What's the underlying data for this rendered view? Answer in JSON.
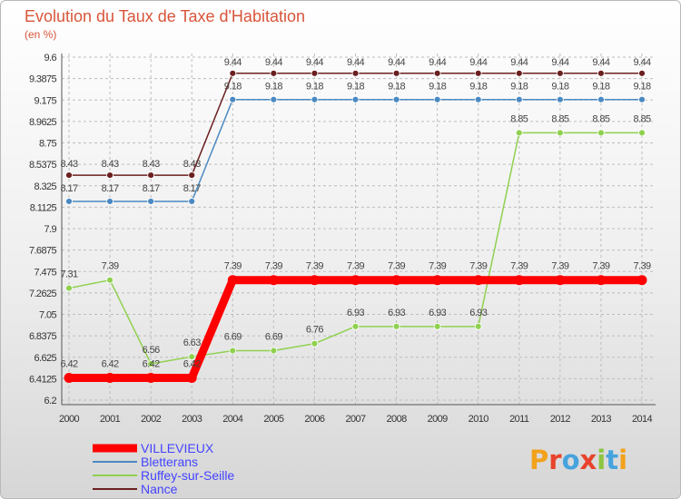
{
  "chart_data": {
    "type": "line",
    "title": "Evolution du Taux de Taxe d'Habitation",
    "ylabel": "(en %)",
    "xlabel": "",
    "categories": [
      "2000",
      "2001",
      "2002",
      "2003",
      "2004",
      "2005",
      "2006",
      "2007",
      "2008",
      "2009",
      "2010",
      "2011",
      "2012",
      "2013",
      "2014"
    ],
    "ylim": [
      6.2,
      9.6
    ],
    "yticks": [
      "6.2",
      "6.4125",
      "6.625",
      "6.8375",
      "7.05",
      "7.2625",
      "7.475",
      "7.6875",
      "7.9",
      "8.1125",
      "8.325",
      "8.5375",
      "8.75",
      "8.9625",
      "9.175",
      "9.3875",
      "9.6"
    ],
    "grid": true,
    "legend": "bottom-left",
    "series": [
      {
        "name": "VILLEVIEUX",
        "color": "#ff0000",
        "values": [
          6.42,
          6.42,
          6.42,
          6.42,
          7.39,
          7.39,
          7.39,
          7.39,
          7.39,
          7.39,
          7.39,
          7.39,
          7.39,
          7.39,
          7.39
        ]
      },
      {
        "name": "Bletterans",
        "color": "#4a89c2",
        "values": [
          8.17,
          8.17,
          8.17,
          8.17,
          9.18,
          9.18,
          9.18,
          9.18,
          9.18,
          9.18,
          9.18,
          9.18,
          9.18,
          9.18,
          9.18
        ]
      },
      {
        "name": "Ruffey-sur-Seille",
        "color": "#8fd14f",
        "values": [
          7.31,
          7.39,
          6.56,
          6.63,
          6.69,
          6.69,
          6.76,
          6.93,
          6.93,
          6.93,
          6.93,
          8.85,
          8.85,
          8.85,
          8.85
        ]
      },
      {
        "name": "Nance",
        "color": "#6b1f1f",
        "values": [
          8.43,
          8.43,
          8.43,
          8.43,
          9.44,
          9.44,
          9.44,
          9.44,
          9.44,
          9.44,
          9.44,
          9.44,
          9.44,
          9.44,
          9.44
        ]
      }
    ]
  },
  "logo": {
    "text": "Proxiti",
    "letters": [
      "P",
      "r",
      "o",
      "x",
      "i",
      "t",
      "i"
    ]
  }
}
